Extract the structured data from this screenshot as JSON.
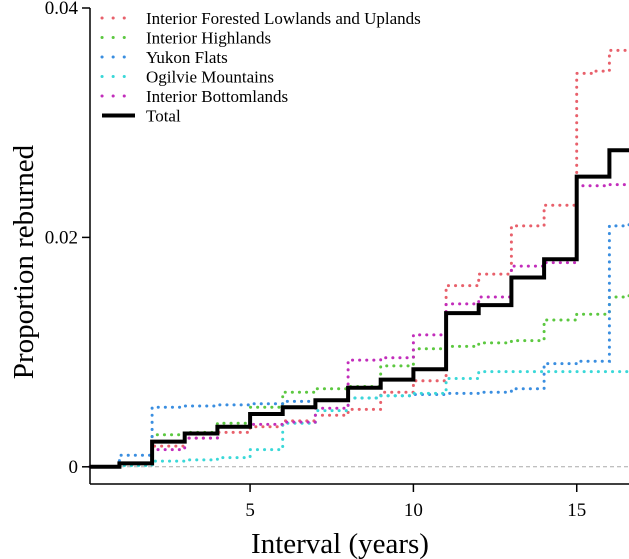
{
  "chart_data": {
    "type": "line",
    "step": true,
    "xlabel": "Interval (years)",
    "ylabel": "Proportion reburned",
    "xlim": [
      0.1,
      16.6
    ],
    "ylim": [
      -0.0015,
      0.04
    ],
    "x_ticks": [
      5,
      10,
      15
    ],
    "x_tick_labels": [
      "5",
      "10",
      "15"
    ],
    "y_ticks": [
      0,
      0.02,
      0.04
    ],
    "y_tick_labels": [
      "0",
      "0.02",
      "0.04"
    ],
    "zero_reference_line": true,
    "legend_position": "top-left",
    "grid": false,
    "series": [
      {
        "name": "Interior Forested Lowlands and Uplands",
        "color": "#e8606b",
        "style": "dotted",
        "x": [
          0.1,
          1,
          2,
          3,
          4,
          5,
          6,
          7,
          8,
          9,
          10,
          11,
          12,
          13,
          14,
          15,
          15.5,
          16,
          16.6
        ],
        "y": [
          0,
          0.0003,
          0.0018,
          0.0025,
          0.003,
          0.0035,
          0.004,
          0.0045,
          0.005,
          0.0065,
          0.0075,
          0.0158,
          0.0168,
          0.021,
          0.0228,
          0.0343,
          0.0345,
          0.0363,
          0.0363
        ]
      },
      {
        "name": "Interior Highlands",
        "color": "#5cc840",
        "style": "dotted",
        "x": [
          0.1,
          1,
          2,
          3,
          4,
          5,
          6,
          7,
          8,
          9,
          10,
          11,
          12,
          13,
          14,
          15,
          16,
          16.6
        ],
        "y": [
          0,
          0.0003,
          0.0028,
          0.003,
          0.0038,
          0.0052,
          0.0065,
          0.0068,
          0.007,
          0.0088,
          0.0103,
          0.0105,
          0.0108,
          0.011,
          0.0128,
          0.0133,
          0.0148,
          0.0152
        ]
      },
      {
        "name": "Yukon Flats",
        "color": "#3a8ee0",
        "style": "dotted",
        "x": [
          0.1,
          0.5,
          1,
          2,
          3,
          4,
          5,
          6,
          7,
          8,
          9,
          10,
          11,
          12,
          13,
          14,
          15,
          16,
          16.6
        ],
        "y": [
          0,
          0,
          0.001,
          0.0052,
          0.0053,
          0.0054,
          0.0055,
          0.0057,
          0.0058,
          0.006,
          0.0062,
          0.0063,
          0.0064,
          0.0065,
          0.0068,
          0.009,
          0.0092,
          0.021,
          0.0212
        ]
      },
      {
        "name": "Ogilvie Mountains",
        "color": "#3ad8d8",
        "style": "dotted",
        "x": [
          0.1,
          1,
          2,
          3,
          4,
          5,
          6,
          7,
          8,
          9,
          10,
          11,
          12,
          13,
          14,
          15,
          16,
          16.6
        ],
        "y": [
          0,
          0.0001,
          0.0005,
          0.0006,
          0.0008,
          0.0015,
          0.0038,
          0.0049,
          0.006,
          0.0062,
          0.0064,
          0.0077,
          0.0083,
          0.0083,
          0.0083,
          0.0083,
          0.0083,
          0.0083
        ]
      },
      {
        "name": "Interior Bottomlands",
        "color": "#c22dbb",
        "style": "dotted",
        "x": [
          0.1,
          1,
          2,
          3,
          4,
          5,
          6,
          7,
          8,
          9,
          10,
          11,
          12,
          13,
          14,
          15,
          16,
          16.6
        ],
        "y": [
          0,
          0.0003,
          0.0015,
          0.0025,
          0.0035,
          0.0037,
          0.0039,
          0.0051,
          0.0093,
          0.0095,
          0.0115,
          0.0142,
          0.0148,
          0.0175,
          0.0178,
          0.0245,
          0.0246,
          0.0248
        ]
      },
      {
        "name": "Total",
        "color": "#000000",
        "style": "solid",
        "x": [
          0.1,
          1,
          2,
          3,
          4,
          5,
          6,
          7,
          8,
          9,
          10,
          11,
          12,
          13,
          14,
          15,
          16,
          16.6
        ],
        "y": [
          0,
          0.0003,
          0.0022,
          0.0029,
          0.0035,
          0.0046,
          0.0052,
          0.0058,
          0.0069,
          0.0076,
          0.0085,
          0.0134,
          0.0141,
          0.0165,
          0.0181,
          0.0253,
          0.0276,
          0.0276
        ]
      }
    ]
  }
}
